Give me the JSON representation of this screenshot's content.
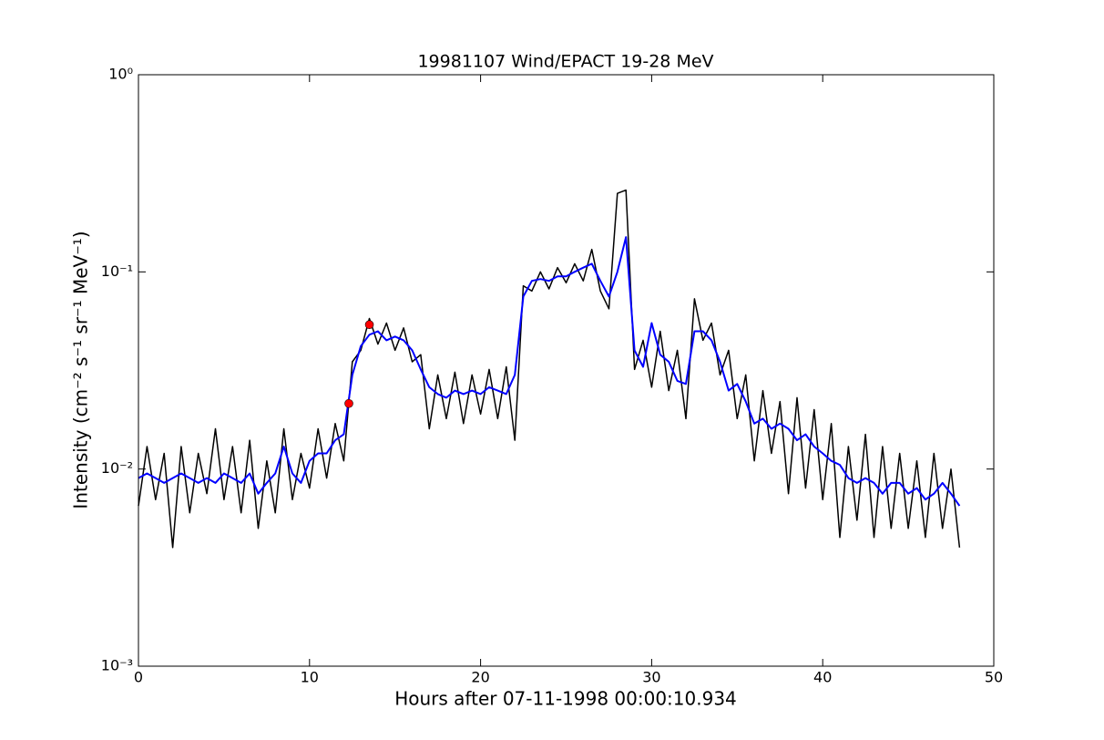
{
  "chart_data": {
    "type": "line",
    "title": "19981107 Wind/EPACT 19-28 MeV",
    "xlabel": "Hours after 07-11-1998 00:00:10.934",
    "ylabel": "Intensity (cm⁻² s⁻¹ sr⁻¹ MeV⁻¹)",
    "log_y": true,
    "grid": false,
    "xlim": [
      0,
      50
    ],
    "xticks": [
      0,
      10,
      20,
      30,
      40,
      50
    ],
    "ylim": [
      0.001,
      1
    ],
    "yticks": [
      {
        "value": 0.001,
        "label": "10⁻³"
      },
      {
        "value": 0.01,
        "label": "10⁻²"
      },
      {
        "value": 0.1,
        "label": "10⁻¹"
      },
      {
        "value": 1,
        "label": "10⁰"
      }
    ],
    "x": [
      0,
      0.5,
      1,
      1.5,
      2,
      2.5,
      3,
      3.5,
      4,
      4.5,
      5,
      5.5,
      6,
      6.5,
      7,
      7.5,
      8,
      8.5,
      9,
      9.5,
      10,
      10.5,
      11,
      11.5,
      12,
      12.5,
      13,
      13.5,
      14,
      14.5,
      15,
      15.5,
      16,
      16.5,
      17,
      17.5,
      18,
      18.5,
      19,
      19.5,
      20,
      20.5,
      21,
      21.5,
      22,
      22.5,
      23,
      23.5,
      24,
      24.5,
      25,
      25.5,
      26,
      26.5,
      27,
      27.5,
      28,
      28.5,
      29,
      29.5,
      30,
      30.5,
      31,
      31.5,
      32,
      32.5,
      33,
      33.5,
      34,
      34.5,
      35,
      35.5,
      36,
      36.5,
      37,
      37.5,
      38,
      38.5,
      39,
      39.5,
      40,
      40.5,
      41,
      41.5,
      42,
      42.5,
      43,
      43.5,
      44,
      44.5,
      45,
      45.5,
      46,
      46.5,
      47,
      47.5,
      48
    ],
    "series": [
      {
        "color": "#000000",
        "values": [
          0.0065,
          0.013,
          0.007,
          0.012,
          0.004,
          0.013,
          0.006,
          0.012,
          0.0075,
          0.016,
          0.007,
          0.013,
          0.006,
          0.014,
          0.005,
          0.011,
          0.006,
          0.016,
          0.007,
          0.012,
          0.008,
          0.016,
          0.009,
          0.017,
          0.011,
          0.035,
          0.04,
          0.058,
          0.043,
          0.055,
          0.04,
          0.052,
          0.035,
          0.038,
          0.016,
          0.03,
          0.018,
          0.031,
          0.017,
          0.03,
          0.019,
          0.032,
          0.018,
          0.033,
          0.014,
          0.085,
          0.08,
          0.1,
          0.082,
          0.105,
          0.088,
          0.11,
          0.09,
          0.13,
          0.08,
          0.065,
          0.25,
          0.26,
          0.032,
          0.045,
          0.026,
          0.05,
          0.025,
          0.04,
          0.018,
          0.073,
          0.045,
          0.055,
          0.03,
          0.04,
          0.018,
          0.03,
          0.011,
          0.025,
          0.012,
          0.022,
          0.0075,
          0.023,
          0.008,
          0.02,
          0.007,
          0.017,
          0.0045,
          0.013,
          0.0055,
          0.015,
          0.0045,
          0.013,
          0.005,
          0.012,
          0.005,
          0.011,
          0.0045,
          0.012,
          0.005,
          0.01,
          0.004
        ]
      },
      {
        "color": "#0000ff",
        "values": [
          0.009,
          0.0095,
          0.009,
          0.0085,
          0.009,
          0.0095,
          0.009,
          0.0085,
          0.009,
          0.0085,
          0.0095,
          0.009,
          0.0085,
          0.0095,
          0.0075,
          0.0085,
          0.0095,
          0.013,
          0.0095,
          0.0085,
          0.011,
          0.012,
          0.012,
          0.014,
          0.015,
          0.03,
          0.042,
          0.048,
          0.05,
          0.045,
          0.047,
          0.045,
          0.04,
          0.032,
          0.026,
          0.024,
          0.023,
          0.025,
          0.024,
          0.025,
          0.024,
          0.026,
          0.025,
          0.024,
          0.03,
          0.075,
          0.09,
          0.092,
          0.09,
          0.095,
          0.095,
          0.1,
          0.105,
          0.11,
          0.09,
          0.075,
          0.1,
          0.15,
          0.04,
          0.033,
          0.055,
          0.038,
          0.035,
          0.028,
          0.027,
          0.05,
          0.05,
          0.045,
          0.035,
          0.025,
          0.027,
          0.022,
          0.017,
          0.018,
          0.016,
          0.017,
          0.016,
          0.014,
          0.015,
          0.013,
          0.012,
          0.011,
          0.0105,
          0.009,
          0.0085,
          0.009,
          0.0085,
          0.0075,
          0.0085,
          0.0085,
          0.0075,
          0.008,
          0.007,
          0.0075,
          0.0085,
          0.0075,
          0.0065
        ]
      }
    ],
    "markers": {
      "color": "#ff0000",
      "x": [
        12.3,
        13.5
      ],
      "values": [
        0.0215,
        0.054
      ]
    }
  }
}
